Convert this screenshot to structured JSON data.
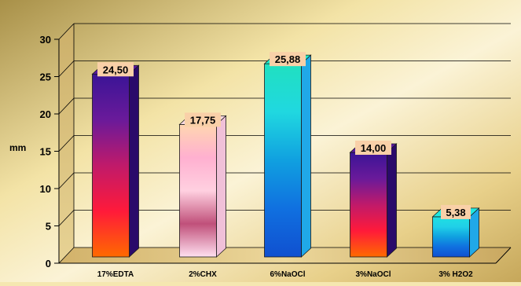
{
  "chart_data": {
    "type": "bar",
    "title": "",
    "xlabel": "",
    "ylabel": "mm",
    "ylim": [
      0,
      30
    ],
    "yticks": [
      0,
      5,
      10,
      15,
      20,
      25,
      30
    ],
    "grid": true,
    "legend": "none",
    "categories": [
      "17%EDTA",
      "2%CHX",
      "6%NaOCl",
      "3%NaOCl",
      "3% H2O2"
    ],
    "values": [
      24.5,
      17.75,
      25.88,
      14.0,
      5.38
    ],
    "data_labels": [
      "24,50",
      "17,75",
      "25,88",
      "14,00",
      "5,38"
    ],
    "label_box_color": "#f9d0a8",
    "bar_styles": [
      {
        "stops": [
          "#3a1496",
          "#6a1a9a",
          "#c01a6a",
          "#ff1a3a",
          "#ff6a00"
        ],
        "side": "#2a0a6a",
        "top": "#5a1aa0"
      },
      {
        "stops": [
          "#ffd6b0",
          "#ffb0d0",
          "#ffd0e0",
          "#c0507a",
          "#ffe0f0"
        ],
        "side": "#f0c0d8",
        "top": "#f8d8e0"
      },
      {
        "stops": [
          "#20e0c0",
          "#20d8e0",
          "#10a0e0",
          "#1070e0",
          "#1050d0"
        ],
        "side": "#20a8e8",
        "top": "#20e8c8"
      },
      {
        "stops": [
          "#3a1496",
          "#6a1a9a",
          "#c01a6a",
          "#ff1a3a",
          "#ff6a00"
        ],
        "side": "#2a0a6a",
        "top": "#5a1aa0"
      },
      {
        "stops": [
          "#20e0e0",
          "#20d0e8",
          "#10a0e0",
          "#1070e0",
          "#1050d0"
        ],
        "side": "#20a8e8",
        "top": "#20e8e0"
      }
    ]
  }
}
